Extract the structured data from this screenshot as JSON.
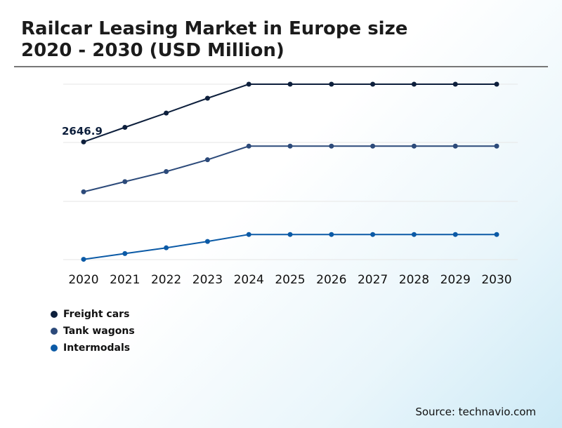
{
  "header": {
    "title_line1": "Railcar Leasing Market in Europe size",
    "title_line2": "2020 - 2030 (USD Million)"
  },
  "source": "Source: technavio.com",
  "colors": {
    "freight_cars": "#0d1f3c",
    "tank_wagons": "#2c4a7a",
    "intermodals": "#0b5aa6",
    "grid": "#e6e6e6"
  },
  "chart_data": {
    "type": "line",
    "x": [
      "2020",
      "2021",
      "2022",
      "2023",
      "2024",
      "2025",
      "2026",
      "2027",
      "2028",
      "2029",
      "2030"
    ],
    "series": [
      {
        "name": "Freight cars",
        "values": [
          2646.9,
          2791,
          2933,
          3080,
          3219,
          3219,
          3219,
          3219,
          3219,
          3219,
          3219
        ]
      },
      {
        "name": "Tank wagons",
        "values": [
          2152,
          2253,
          2353,
          2470,
          2605,
          2605,
          2605,
          2605,
          2605,
          2605,
          2605
        ]
      },
      {
        "name": "Intermodals",
        "values": [
          1483,
          1540,
          1597,
          1660,
          1729,
          1729,
          1729,
          1729,
          1729,
          1729,
          1729
        ]
      }
    ],
    "annotations": [
      {
        "series": "Freight cars",
        "x": "2020",
        "text": "2646.9"
      }
    ],
    "ylim": [
      1480,
      3219
    ],
    "grid": true,
    "legend_position": "bottom-left"
  }
}
